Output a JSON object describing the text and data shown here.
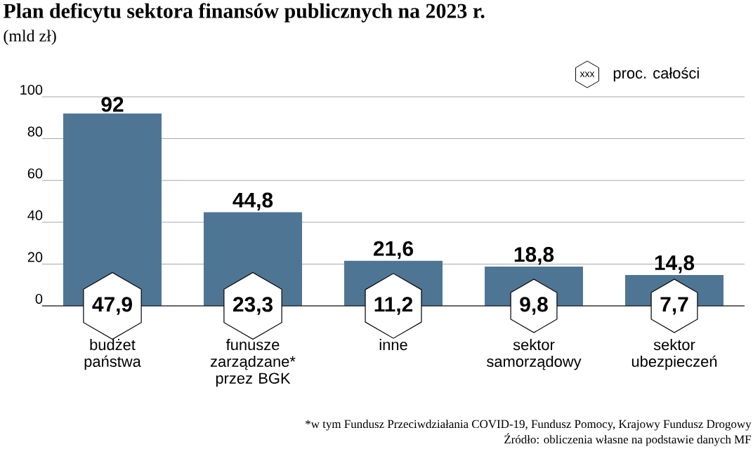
{
  "chart_data": {
    "type": "bar",
    "title": "Plan deficytu sektora finansów publicznych na 2023 r.",
    "subtitle": "(mld zł)",
    "categories": [
      "budżet państwa",
      "funusze zarządzane* przez BGK",
      "inne",
      "sektor samorządowy",
      "sektor ubezpieczeń"
    ],
    "values": [
      92,
      44.8,
      21.6,
      18.8,
      14.8
    ],
    "value_labels": [
      "92",
      "44,8",
      "21,6",
      "18,8",
      "14,8"
    ],
    "color": "#4f7594",
    "ylim": [
      0,
      100
    ],
    "yticks": [
      0,
      20,
      40,
      60,
      80,
      100
    ],
    "grid": "y",
    "legend_title": "proc. całości",
    "annotations": [
      {
        "text": "47,9",
        "x": "budżet państwa",
        "y": 0
      },
      {
        "text": "23,3",
        "x": "funusze zarządzane* przez BGK",
        "y": 0
      },
      {
        "text": "11,2",
        "x": "inne",
        "y": 0
      },
      {
        "text": "9,8",
        "x": "sektor samorządowy",
        "y": 0
      },
      {
        "text": "7,7",
        "x": "sektor ubezpieczeń",
        "y": 0
      },
      "xxx",
      "*w tym Fundusz Przeciwdziałania COVID-19, Fundusz Pomocy, Krajowy Fundusz Drogowy",
      "Źródło: obliczenia własne na podstawie danych MF"
    ]
  }
}
